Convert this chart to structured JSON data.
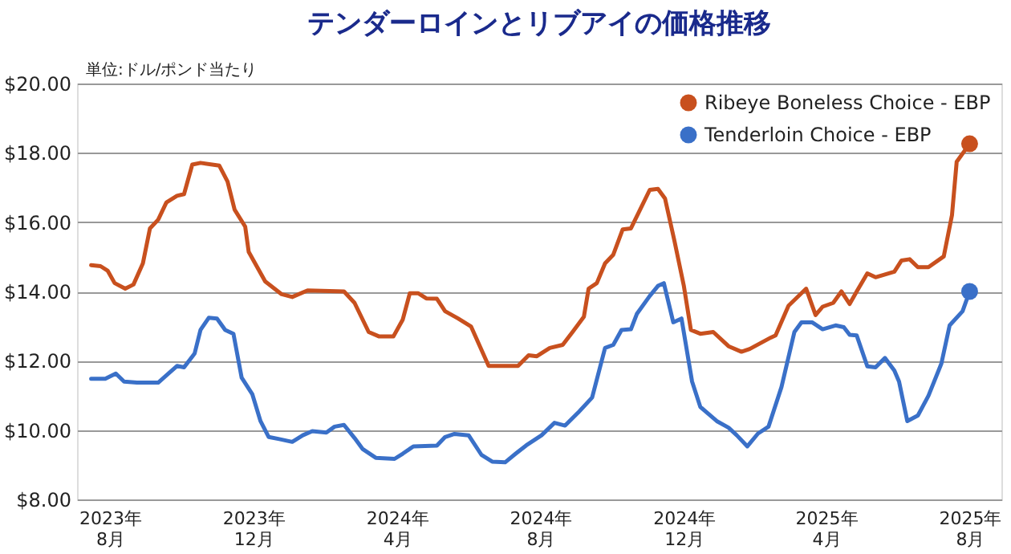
{
  "chart_data": {
    "type": "line",
    "title": "テンダーロインとリブアイの価格推移",
    "ylabel": "単位:ドル/ポンド当たり",
    "xlim": [
      "2023-07-04",
      "2025-08-28"
    ],
    "xticks": [
      {
        "value": "2023-08-01",
        "label": "2023年\n8月"
      },
      {
        "value": "2023-12-01",
        "label": "2023年\n12月"
      },
      {
        "value": "2024-04-01",
        "label": "2024年\n4月"
      },
      {
        "value": "2024-08-01",
        "label": "2024年\n8月"
      },
      {
        "value": "2024-12-01",
        "label": "2024年\n12月"
      },
      {
        "value": "2025-04-01",
        "label": "2025年\n4月"
      },
      {
        "value": "2025-08-01",
        "label": "2025年\n8月"
      }
    ],
    "ylim": [
      8,
      20
    ],
    "yticks": [
      {
        "value": 8,
        "label": "$8.00"
      },
      {
        "value": 10,
        "label": "$10.00"
      },
      {
        "value": 12,
        "label": "$12.00"
      },
      {
        "value": 14,
        "label": "$14.00"
      },
      {
        "value": 16,
        "label": "$16.00"
      },
      {
        "value": 18,
        "label": "$18.00"
      },
      {
        "value": 20,
        "label": "$20.00"
      }
    ],
    "grid": "y",
    "legend": "top right",
    "line_style": "solid",
    "series": [
      {
        "name": "Ribeye Boneless Choice - EBP",
        "color": "#c8501e",
        "x": [
          "2023-07-16",
          "2023-07-24",
          "2023-07-30",
          "2023-08-05",
          "2023-08-14",
          "2023-08-21",
          "2023-08-29",
          "2023-09-04",
          "2023-09-11",
          "2023-09-18",
          "2023-09-27",
          "2023-10-03",
          "2023-10-10",
          "2023-10-17",
          "2023-11-02",
          "2023-11-09",
          "2023-11-15",
          "2023-11-24",
          "2023-11-27",
          "2023-12-11",
          "2023-12-25",
          "2024-01-03",
          "2024-01-16",
          "2024-02-16",
          "2024-02-25",
          "2024-03-08",
          "2024-03-17",
          "2024-03-29",
          "2024-04-06",
          "2024-04-12",
          "2024-04-19",
          "2024-04-26",
          "2024-05-05",
          "2024-05-12",
          "2024-05-23",
          "2024-06-03",
          "2024-06-18",
          "2024-07-13",
          "2024-07-22",
          "2024-07-29",
          "2024-08-09",
          "2024-08-20",
          "2024-08-29",
          "2024-09-07",
          "2024-09-11",
          "2024-09-18",
          "2024-09-25",
          "2024-10-02",
          "2024-10-10",
          "2024-10-17",
          "2024-11-02",
          "2024-11-09",
          "2024-11-15",
          "2024-11-23",
          "2024-12-01",
          "2024-12-07",
          "2024-12-15",
          "2024-12-26",
          "2025-01-08",
          "2025-01-19",
          "2025-01-26",
          "2025-02-13",
          "2025-02-17",
          "2025-02-28",
          "2025-03-15",
          "2025-03-23",
          "2025-03-29",
          "2025-04-07",
          "2025-04-14",
          "2025-04-21",
          "2025-04-27",
          "2025-05-06",
          "2025-05-13",
          "2025-05-29",
          "2025-06-04",
          "2025-06-11",
          "2025-06-18",
          "2025-06-27",
          "2025-07-10",
          "2025-07-17",
          "2025-07-21",
          "2025-08-01"
        ],
        "values": [
          14.76,
          14.73,
          14.6,
          14.24,
          14.08,
          14.2,
          14.81,
          15.82,
          16.07,
          16.57,
          16.76,
          16.81,
          17.66,
          17.71,
          17.63,
          17.17,
          16.36,
          15.87,
          15.14,
          14.29,
          13.92,
          13.84,
          14.03,
          14.0,
          13.67,
          12.83,
          12.7,
          12.7,
          13.19,
          13.95,
          13.95,
          13.8,
          13.79,
          13.43,
          13.22,
          12.99,
          11.85,
          11.85,
          12.16,
          12.13,
          12.37,
          12.46,
          12.86,
          13.27,
          14.08,
          14.24,
          14.81,
          15.06,
          15.79,
          15.82,
          16.93,
          16.96,
          16.68,
          15.46,
          14.16,
          12.89,
          12.78,
          12.83,
          12.42,
          12.26,
          12.34,
          12.67,
          12.73,
          13.59,
          14.08,
          13.32,
          13.56,
          13.67,
          14.0,
          13.64,
          14.0,
          14.52,
          14.41,
          14.57,
          14.89,
          14.93,
          14.7,
          14.7,
          15.01,
          16.2,
          17.74,
          18.26
        ]
      },
      {
        "name": "Tenderloin Choice - EBP",
        "color": "#3a70c8",
        "x": [
          "2023-07-16",
          "2023-07-28",
          "2023-08-06",
          "2023-08-13",
          "2023-08-24",
          "2023-09-11",
          "2023-09-20",
          "2023-09-27",
          "2023-10-03",
          "2023-10-12",
          "2023-10-17",
          "2023-10-24",
          "2023-10-31",
          "2023-11-07",
          "2023-11-14",
          "2023-11-21",
          "2023-11-30",
          "2023-12-07",
          "2023-12-14",
          "2023-12-23",
          "2024-01-03",
          "2024-01-12",
          "2024-01-20",
          "2024-02-01",
          "2024-02-08",
          "2024-02-16",
          "2024-02-25",
          "2024-03-03",
          "2024-03-14",
          "2024-03-30",
          "2024-04-06",
          "2024-04-15",
          "2024-05-05",
          "2024-05-12",
          "2024-05-20",
          "2024-06-01",
          "2024-06-12",
          "2024-06-21",
          "2024-07-02",
          "2024-07-11",
          "2024-07-20",
          "2024-08-02",
          "2024-08-13",
          "2024-08-22",
          "2024-09-02",
          "2024-09-14",
          "2024-09-25",
          "2024-10-02",
          "2024-10-09",
          "2024-10-17",
          "2024-10-22",
          "2024-11-02",
          "2024-11-09",
          "2024-11-14",
          "2024-11-22",
          "2024-11-29",
          "2024-12-08",
          "2024-12-15",
          "2024-12-29",
          "2025-01-08",
          "2025-01-15",
          "2025-01-24",
          "2025-02-02",
          "2025-02-11",
          "2025-02-22",
          "2025-03-05",
          "2025-03-11",
          "2025-03-20",
          "2025-03-29",
          "2025-04-09",
          "2025-04-16",
          "2025-04-21",
          "2025-04-27",
          "2025-05-06",
          "2025-05-13",
          "2025-05-21",
          "2025-05-29",
          "2025-06-02",
          "2025-06-09",
          "2025-06-18",
          "2025-06-27",
          "2025-07-08",
          "2025-07-15",
          "2025-07-26",
          "2025-08-01"
        ],
        "values": [
          11.48,
          11.48,
          11.63,
          11.4,
          11.37,
          11.37,
          11.64,
          11.85,
          11.81,
          12.21,
          12.89,
          13.24,
          13.22,
          12.89,
          12.78,
          11.51,
          11.04,
          10.26,
          9.8,
          9.74,
          9.66,
          9.85,
          9.97,
          9.93,
          10.1,
          10.15,
          9.77,
          9.45,
          9.2,
          9.17,
          9.32,
          9.53,
          9.55,
          9.8,
          9.89,
          9.85,
          9.28,
          9.09,
          9.07,
          9.32,
          9.56,
          9.85,
          10.21,
          10.13,
          10.5,
          10.94,
          12.37,
          12.46,
          12.89,
          12.91,
          13.35,
          13.87,
          14.16,
          14.24,
          13.11,
          13.22,
          11.4,
          10.67,
          10.26,
          10.07,
          9.85,
          9.53,
          9.9,
          10.1,
          11.24,
          12.83,
          13.11,
          13.11,
          12.91,
          13.02,
          12.97,
          12.75,
          12.73,
          11.84,
          11.81,
          12.08,
          11.72,
          11.4,
          10.26,
          10.42,
          10.99,
          11.92,
          13.02,
          13.43,
          14.0
        ]
      }
    ]
  }
}
